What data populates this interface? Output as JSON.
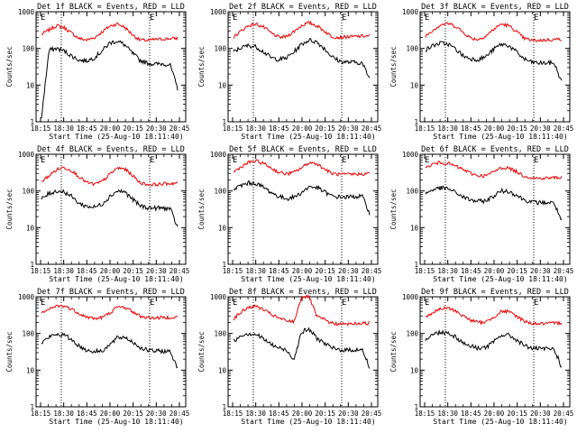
{
  "figure": {
    "background": "#ffffff",
    "series_colors": {
      "events": "#000000",
      "lld": "#ee0000"
    }
  },
  "chart_data": [
    {
      "type": "line",
      "title": "Det 1f BLACK = Events, RED = LLD",
      "ylabel": "Counts/sec",
      "xlabel": "Start Time (25-Aug-10 18:11:40)",
      "x_ticks": [
        "18:15",
        "18:30",
        "18:45",
        "20:00",
        "20:15",
        "20:30",
        "20:45"
      ],
      "y_scale": "log",
      "ylim": [
        1,
        1000
      ],
      "y_ticks": [
        "1",
        "10",
        "100",
        "1000"
      ],
      "markers": [
        "E",
        "E"
      ],
      "series": [
        {
          "color": "#ee0000",
          "values": [
            240,
            320,
            420,
            370,
            260,
            185,
            170,
            195,
            280,
            400,
            470,
            380,
            240,
            170,
            165,
            175,
            180,
            185,
            190
          ]
        },
        {
          "color": "#000000",
          "values": [
            1.3,
            90,
            100,
            85,
            62,
            48,
            46,
            56,
            85,
            140,
            160,
            125,
            75,
            48,
            40,
            37,
            38,
            36,
            8
          ]
        }
      ]
    },
    {
      "type": "line",
      "title": "Det 2f BLACK = Events, RED = LLD",
      "ylabel": "Counts/sec",
      "xlabel": "Start Time (25-Aug-10 18:11:40)",
      "x_ticks": [
        "18:15",
        "18:30",
        "18:45",
        "20:00",
        "20:15",
        "20:30",
        "20:45"
      ],
      "y_scale": "log",
      "ylim": [
        1,
        1000
      ],
      "y_ticks": [
        "1",
        "10",
        "100",
        "1000"
      ],
      "markers": [
        "E",
        "E"
      ],
      "series": [
        {
          "color": "#ee0000",
          "values": [
            200,
            300,
            420,
            460,
            380,
            260,
            200,
            210,
            290,
            420,
            500,
            420,
            300,
            210,
            200,
            205,
            210,
            215,
            220
          ]
        },
        {
          "color": "#000000",
          "values": [
            80,
            105,
            120,
            110,
            80,
            55,
            50,
            55,
            80,
            130,
            170,
            150,
            100,
            60,
            45,
            42,
            42,
            40,
            15
          ]
        }
      ]
    },
    {
      "type": "line",
      "title": "Det 3f BLACK = Events, RED = LLD",
      "ylabel": "Counts/sec",
      "xlabel": "Start Time (25-Aug-10 18:11:40)",
      "x_ticks": [
        "18:15",
        "18:30",
        "18:45",
        "20:00",
        "20:15",
        "20:30",
        "20:45"
      ],
      "y_scale": "log",
      "ylim": [
        1,
        1000
      ],
      "y_ticks": [
        "1",
        "10",
        "100",
        "1000"
      ],
      "markers": [
        "E",
        "E"
      ],
      "series": [
        {
          "color": "#ee0000",
          "values": [
            220,
            320,
            440,
            480,
            400,
            270,
            190,
            175,
            220,
            330,
            460,
            420,
            290,
            190,
            165,
            165,
            170,
            175,
            180
          ]
        },
        {
          "color": "#000000",
          "values": [
            90,
            120,
            140,
            130,
            95,
            62,
            52,
            50,
            60,
            95,
            130,
            120,
            80,
            52,
            42,
            40,
            40,
            40,
            12
          ]
        }
      ]
    },
    {
      "type": "line",
      "title": "Det 4f BLACK = Events, RED = LLD",
      "ylabel": "Counts/sec",
      "xlabel": "Start Time (25-Aug-10 18:11:40)",
      "x_ticks": [
        "18:15",
        "18:30",
        "18:45",
        "20:00",
        "20:15",
        "20:30",
        "20:45"
      ],
      "y_scale": "log",
      "ylim": [
        1,
        1000
      ],
      "y_ticks": [
        "1",
        "10",
        "100",
        "1000"
      ],
      "markers": [
        "E",
        "E"
      ],
      "series": [
        {
          "color": "#ee0000",
          "values": [
            180,
            260,
            380,
            440,
            360,
            240,
            170,
            150,
            180,
            280,
            420,
            400,
            270,
            170,
            150,
            150,
            155,
            160,
            165
          ]
        },
        {
          "color": "#000000",
          "values": [
            60,
            85,
            100,
            95,
            70,
            45,
            38,
            36,
            44,
            70,
            100,
            95,
            60,
            40,
            35,
            34,
            34,
            33,
            10
          ]
        }
      ]
    },
    {
      "type": "line",
      "title": "Det 5f BLACK = Events, RED = LLD",
      "ylabel": "Counts/sec",
      "xlabel": "Start Time (25-Aug-10 18:11:40)",
      "x_ticks": [
        "18:15",
        "18:30",
        "18:45",
        "20:00",
        "20:15",
        "20:30",
        "20:45"
      ],
      "y_scale": "log",
      "ylim": [
        1,
        1000
      ],
      "y_ticks": [
        "1",
        "10",
        "100",
        "1000"
      ],
      "markers": [
        "E",
        "E"
      ],
      "series": [
        {
          "color": "#ee0000",
          "values": [
            330,
            450,
            600,
            650,
            560,
            420,
            320,
            290,
            320,
            430,
            590,
            560,
            400,
            300,
            280,
            280,
            285,
            290,
            300
          ]
        },
        {
          "color": "#000000",
          "values": [
            110,
            140,
            165,
            160,
            125,
            90,
            70,
            62,
            68,
            90,
            130,
            125,
            95,
            72,
            68,
            68,
            70,
            72,
            25
          ]
        }
      ]
    },
    {
      "type": "line",
      "title": "Det 6f BLACK = Events, RED = LLD",
      "ylabel": "Counts/sec",
      "xlabel": "Start Time (25-Aug-10 18:11:40)",
      "x_ticks": [
        "18:15",
        "18:30",
        "18:45",
        "20:00",
        "20:15",
        "20:30",
        "20:45"
      ],
      "y_scale": "log",
      "ylim": [
        1,
        1000
      ],
      "y_ticks": [
        "1",
        "10",
        "100",
        "1000"
      ],
      "markers": [
        "E",
        "E"
      ],
      "series": [
        {
          "color": "#ee0000",
          "values": [
            420,
            540,
            600,
            560,
            470,
            380,
            300,
            260,
            260,
            330,
            430,
            420,
            340,
            260,
            230,
            220,
            225,
            230,
            235
          ]
        },
        {
          "color": "#000000",
          "values": [
            85,
            110,
            120,
            115,
            90,
            68,
            56,
            52,
            54,
            72,
            100,
            98,
            78,
            58,
            50,
            48,
            48,
            47,
            15
          ]
        }
      ]
    },
    {
      "type": "line",
      "title": "Det 7f BLACK = Events, RED = LLD",
      "ylabel": "Counts/sec",
      "xlabel": "Start Time (25-Aug-10 18:11:40)",
      "x_ticks": [
        "18:15",
        "18:30",
        "18:45",
        "20:00",
        "20:15",
        "20:30",
        "20:45"
      ],
      "y_scale": "log",
      "ylim": [
        1,
        1000
      ],
      "y_ticks": [
        "1",
        "10",
        "100",
        "1000"
      ],
      "markers": [
        "E",
        "E"
      ],
      "series": [
        {
          "color": "#ee0000",
          "values": [
            340,
            450,
            560,
            560,
            460,
            350,
            280,
            255,
            270,
            360,
            520,
            520,
            400,
            300,
            270,
            265,
            270,
            275,
            280
          ]
        },
        {
          "color": "#000000",
          "values": [
            55,
            80,
            95,
            90,
            68,
            45,
            35,
            32,
            34,
            48,
            75,
            80,
            60,
            42,
            35,
            33,
            33,
            32,
            12
          ]
        }
      ]
    },
    {
      "type": "line",
      "title": "Det 8f BLACK = Events, RED = LLD",
      "ylabel": "Counts/sec",
      "xlabel": "Start Time (25-Aug-10 18:11:40)",
      "x_ticks": [
        "18:15",
        "18:30",
        "18:45",
        "20:00",
        "20:15",
        "20:30",
        "20:45"
      ],
      "y_scale": "log",
      "ylim": [
        1,
        1000
      ],
      "y_ticks": [
        "1",
        "10",
        "100",
        "1000"
      ],
      "markers": [
        "E",
        "E"
      ],
      "series": [
        {
          "color": "#ee0000",
          "values": [
            250,
            380,
            520,
            550,
            440,
            330,
            260,
            220,
            210,
            1000,
            1000,
            290,
            240,
            190,
            180,
            180,
            185,
            190,
            190
          ]
        },
        {
          "color": "#000000",
          "values": [
            60,
            90,
            100,
            95,
            70,
            50,
            40,
            35,
            20,
            110,
            130,
            75,
            55,
            40,
            36,
            35,
            36,
            36,
            12
          ]
        }
      ]
    },
    {
      "type": "line",
      "title": "Det 9f BLACK = Events, RED = LLD",
      "ylabel": "Counts/sec",
      "xlabel": "Start Time (25-Aug-10 18:11:40)",
      "x_ticks": [
        "18:15",
        "18:30",
        "18:45",
        "20:00",
        "20:15",
        "20:30",
        "20:45"
      ],
      "y_scale": "log",
      "ylim": [
        1,
        1000
      ],
      "y_ticks": [
        "1",
        "10",
        "100",
        "1000"
      ],
      "markers": [
        "E",
        "E"
      ],
      "series": [
        {
          "color": "#ee0000",
          "values": [
            280,
            370,
            470,
            490,
            410,
            300,
            230,
            200,
            205,
            280,
            400,
            390,
            300,
            220,
            190,
            185,
            185,
            190,
            195
          ]
        },
        {
          "color": "#000000",
          "values": [
            70,
            95,
            110,
            105,
            80,
            55,
            45,
            40,
            42,
            58,
            90,
            90,
            68,
            48,
            40,
            38,
            38,
            38,
            12
          ]
        }
      ]
    }
  ]
}
